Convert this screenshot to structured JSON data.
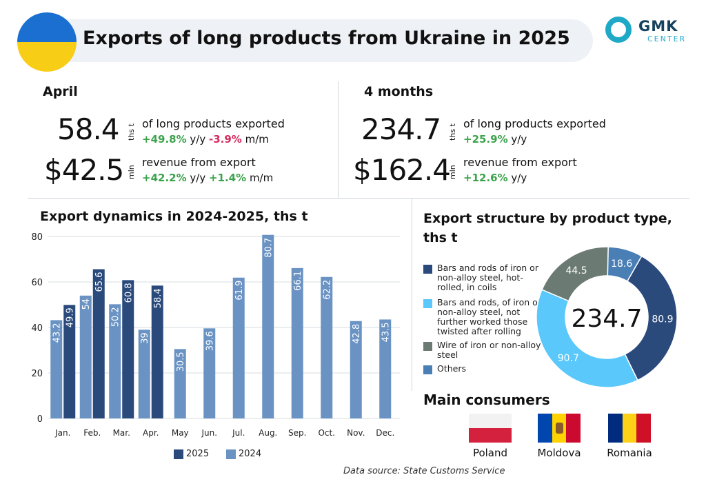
{
  "header": {
    "title": "Exports of long products from Ukraine in 2025",
    "logo_main": "GMK",
    "logo_sub": "CENTER"
  },
  "april": {
    "heading": "April",
    "volume": "58.4",
    "volume_unit": "ths t",
    "volume_desc": "of long products exported",
    "volume_yy": "+49.8%",
    "volume_yy_label": "y/y",
    "volume_mm": "-3.9%",
    "volume_mm_label": "m/m",
    "revenue": "$42.5",
    "revenue_unit": "mln",
    "revenue_desc": "revenue from export",
    "revenue_yy": "+42.2%",
    "revenue_yy_label": "y/y",
    "revenue_mm": "+1.4%",
    "revenue_mm_label": "m/m"
  },
  "four_months": {
    "heading": "4 months",
    "volume": "234.7",
    "volume_unit": "ths t",
    "volume_desc": "of long products exported",
    "volume_yy": "+25.9%",
    "volume_yy_label": "y/y",
    "revenue": "$162.4",
    "revenue_unit": "mln",
    "revenue_desc": "revenue from export",
    "revenue_yy": "+12.6%",
    "revenue_yy_label": "y/y"
  },
  "chart_data": [
    {
      "type": "bar",
      "title": "Export dynamics in 2024-2025, ths t",
      "categories": [
        "Jan.",
        "Feb.",
        "Mar.",
        "Apr.",
        "May",
        "Jun.",
        "Jul.",
        "Aug.",
        "Sep.",
        "Oct.",
        "Nov.",
        "Dec."
      ],
      "series": [
        {
          "name": "2024",
          "color": "#6a93c4",
          "values": [
            43.2,
            54,
            50.2,
            39,
            30.5,
            39.6,
            61.9,
            80.7,
            66.1,
            62.2,
            42.8,
            43.5
          ]
        },
        {
          "name": "2025",
          "color": "#2a4a7c",
          "values": [
            49.9,
            65.6,
            60.8,
            58.4,
            null,
            null,
            null,
            null,
            null,
            null,
            null,
            null
          ]
        }
      ],
      "ylim": [
        0,
        80
      ],
      "yticks": [
        0,
        20,
        40,
        60,
        80
      ],
      "legend": "bottom"
    },
    {
      "type": "pie",
      "title": "Export structure by product type, ths t",
      "center_label": "234.7",
      "slices": [
        {
          "label": "Bars and rods of iron or non-alloy steel, hot-rolled, in coils",
          "value": 80.9,
          "color": "#2a4a7c"
        },
        {
          "label": "Bars and rods, of iron or non-alloy steel, not further worked those twisted after rolling",
          "value": 90.7,
          "color": "#5ac8fa"
        },
        {
          "label": "Wire of iron or non-alloy steel",
          "value": 44.5,
          "color": "#6b7a72"
        },
        {
          "label": "Others",
          "value": 18.6,
          "color": "#4a7fb5"
        }
      ]
    }
  ],
  "consumers": {
    "title": "Main consumers",
    "countries": [
      "Poland",
      "Moldova",
      "Romania"
    ]
  },
  "source": "Data source: State Customs Service"
}
